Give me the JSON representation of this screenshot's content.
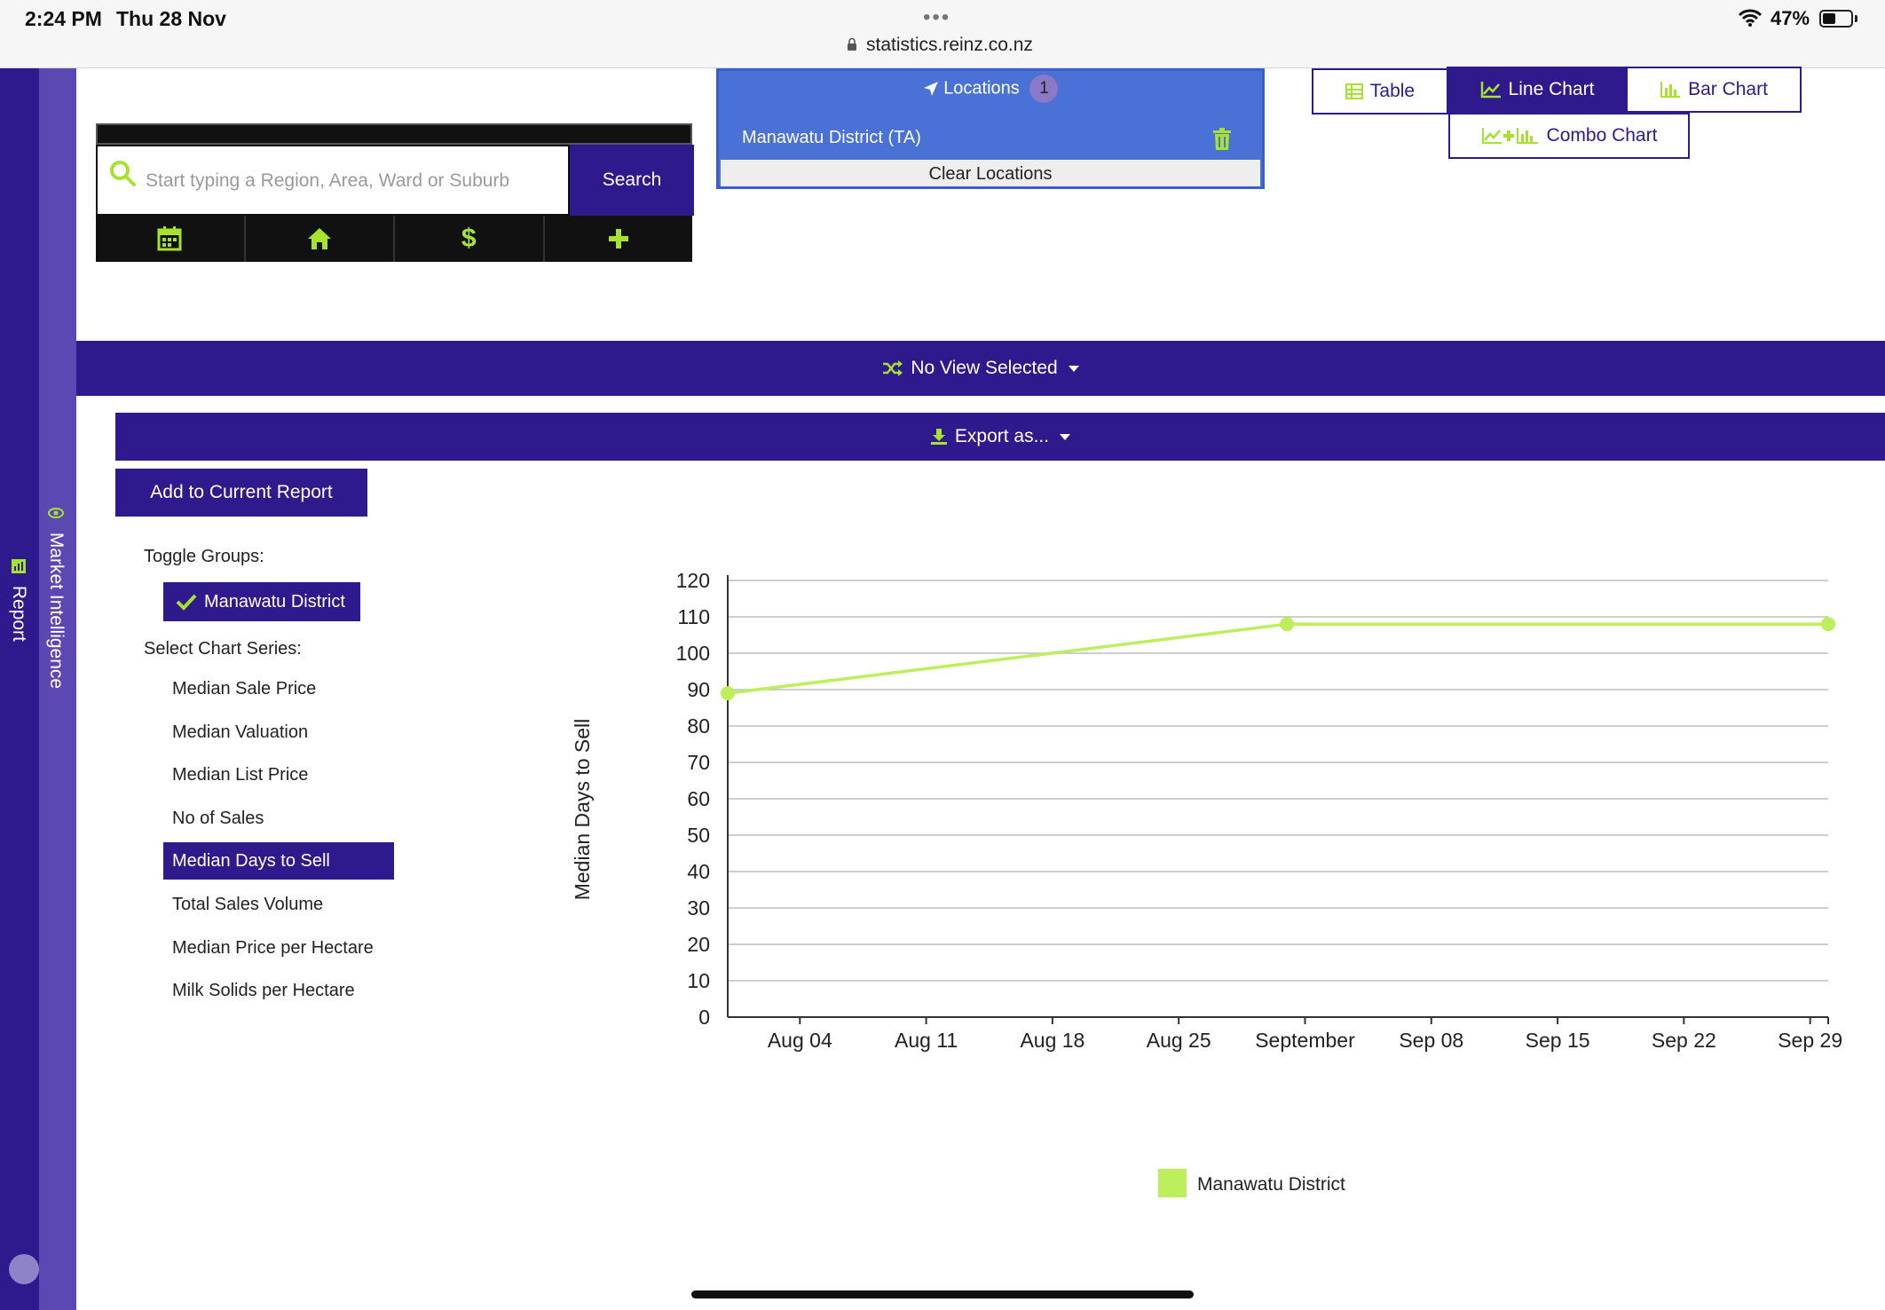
{
  "status_bar": {
    "time": "2:24 PM",
    "date": "Thu 28 Nov",
    "url": "statistics.reinz.co.nz",
    "battery": "47%",
    "battery_level": 0.47
  },
  "sidebar": {
    "tab_report": "Report",
    "tab_market": "Market Intelligence"
  },
  "search": {
    "placeholder": "Start typing a Region, Area, Ward or Suburb",
    "button": "Search"
  },
  "locations": {
    "title": "Locations",
    "count": "1",
    "items": [
      "Manawatu District (TA)"
    ],
    "clear_label": "Clear Locations"
  },
  "chart_types": {
    "table": "Table",
    "line": "Line Chart",
    "bar": "Bar Chart",
    "combo": "Combo Chart",
    "active": "line"
  },
  "view": {
    "label": "No View Selected"
  },
  "export": {
    "label": "Export as..."
  },
  "add_report": "Add to Current Report",
  "toggle_groups": {
    "label": "Toggle Groups:",
    "groups": [
      "Manawatu District"
    ]
  },
  "chart_series": {
    "label": "Select Chart Series:",
    "items": [
      "Median Sale Price",
      "Median Valuation",
      "Median List Price",
      "No of Sales",
      "Median Days to Sell",
      "Total Sales Volume",
      "Median Price per Hectare",
      "Milk Solids per Hectare"
    ],
    "selected": "Median Days to Sell"
  },
  "colors": {
    "brand": "#2e1a8c",
    "accent": "#a6e22e",
    "series": "#bdee5c"
  },
  "chart_data": {
    "type": "line",
    "ylabel": "Median Days to Sell",
    "ylim": [
      0,
      120
    ],
    "yticks": [
      0,
      10,
      20,
      30,
      40,
      50,
      60,
      70,
      80,
      90,
      100,
      110,
      120
    ],
    "x_tick_labels": [
      "Aug 04",
      "Aug 11",
      "Aug 18",
      "Aug 25",
      "September",
      "Sep 08",
      "Sep 15",
      "Sep 22",
      "Sep 29"
    ],
    "x_range": [
      "2019-07-31",
      "2019-09-30"
    ],
    "x_ticks": [
      "2019-08-04",
      "2019-08-11",
      "2019-08-18",
      "2019-08-25",
      "2019-09-01",
      "2019-09-08",
      "2019-09-15",
      "2019-09-22",
      "2019-09-29"
    ],
    "series": [
      {
        "name": "Manawatu District",
        "x": [
          "2019-07-31",
          "2019-08-31",
          "2019-09-30"
        ],
        "values": [
          89,
          108,
          108
        ]
      }
    ],
    "legend": "bottom-center",
    "grid": true
  }
}
